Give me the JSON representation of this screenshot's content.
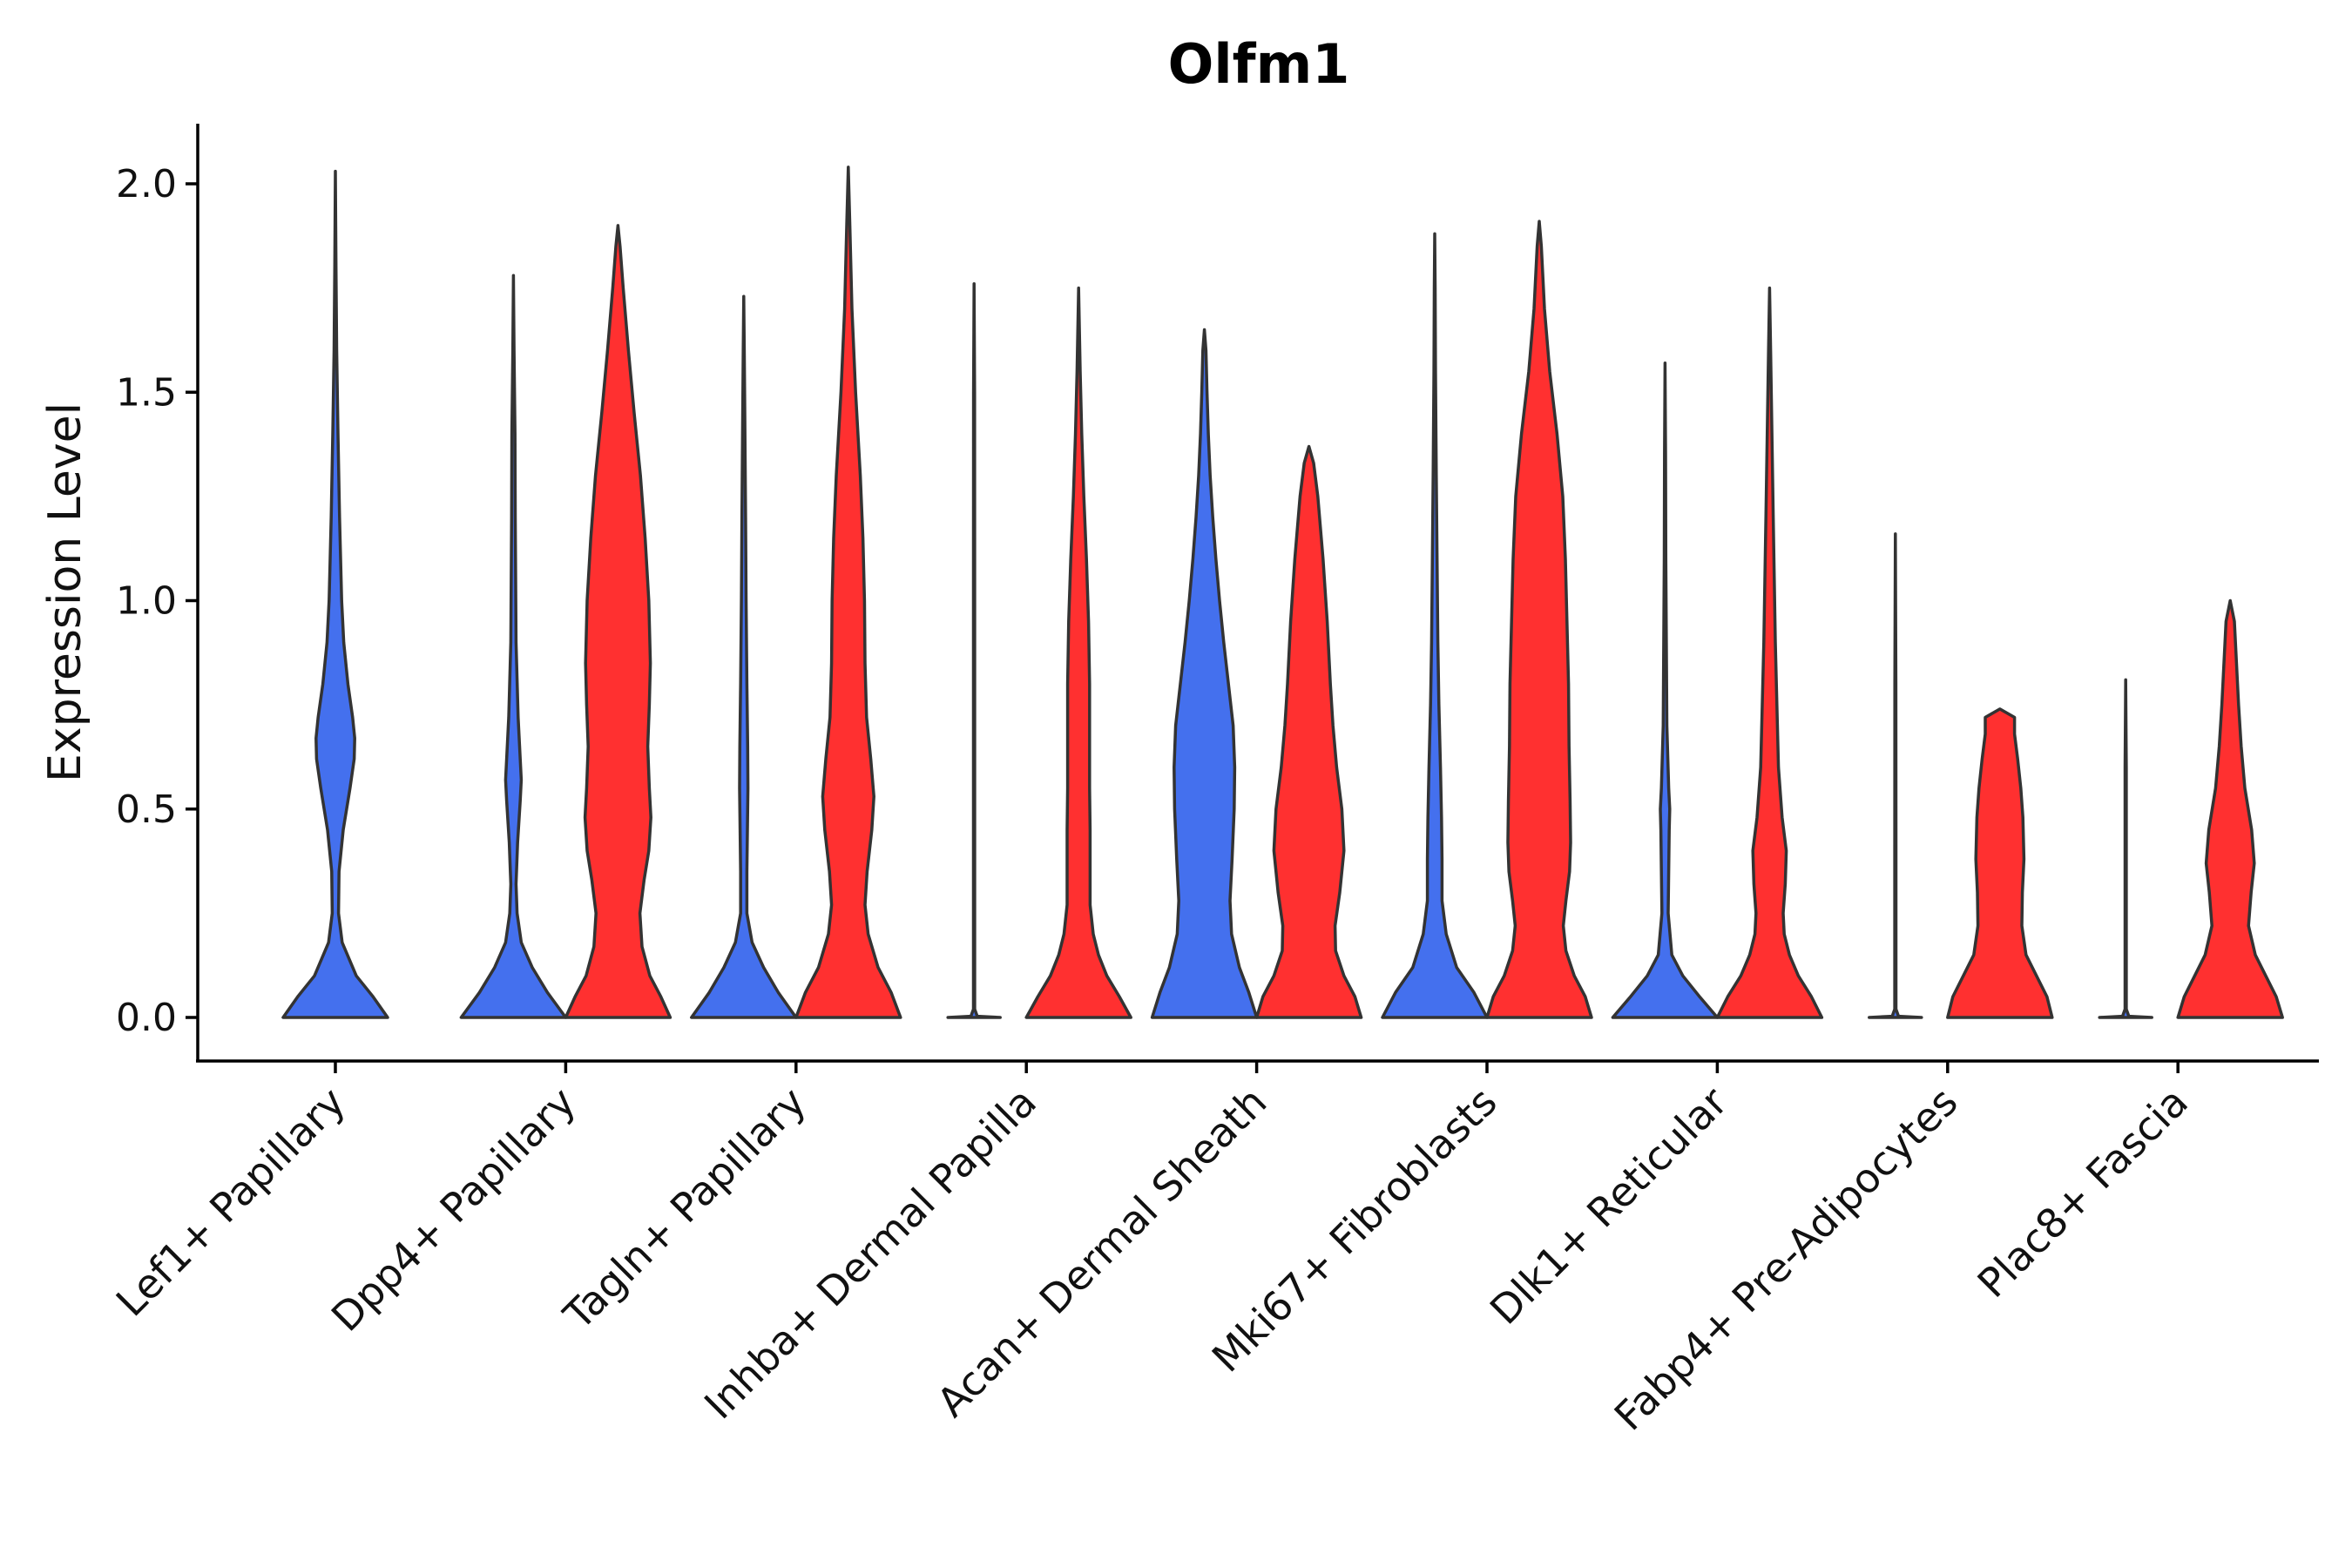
{
  "chart_data": {
    "type": "violin",
    "title": "Olfm1",
    "xlabel": "",
    "ylabel": "Expression Level",
    "ylim": [
      -0.1,
      2.15
    ],
    "yticks": [
      "0.0",
      "0.5",
      "1.0",
      "1.5",
      "2.0"
    ],
    "ytick_values": [
      0,
      0.5,
      1.0,
      1.5,
      2.0
    ],
    "colors": {
      "group1": "#4470EE",
      "group2": "#FF3030",
      "outline": "#333333"
    },
    "categories": [
      "Lef1+ Papillary",
      "Dpp4+ Papillary",
      "Tagln+ Papillary",
      "Inhba+ Dermal Papilla",
      "Acan+ Dermal Sheath",
      "Mki67+ Fibroblasts",
      "Dlk1+ Reticular",
      "Fabp4+ Pre-Adipocytes",
      "Plac8+ Fascia"
    ],
    "series": [
      {
        "name": "group1",
        "color": "#4470EE",
        "max_values": [
          2.03,
          1.78,
          1.73,
          1.76,
          1.65,
          1.88,
          1.57,
          1.16,
          0.81
        ],
        "density": [
          [
            [
              0,
              1.0
            ],
            [
              0.05,
              0.72
            ],
            [
              0.1,
              0.4
            ],
            [
              0.18,
              0.13
            ],
            [
              0.25,
              0.06
            ],
            [
              0.35,
              0.07
            ],
            [
              0.45,
              0.15
            ],
            [
              0.55,
              0.28
            ],
            [
              0.62,
              0.36
            ],
            [
              0.67,
              0.37
            ],
            [
              0.72,
              0.33
            ],
            [
              0.8,
              0.24
            ],
            [
              0.9,
              0.16
            ],
            [
              1.0,
              0.12
            ],
            [
              1.2,
              0.08
            ],
            [
              1.4,
              0.05
            ],
            [
              1.6,
              0.025
            ],
            [
              1.8,
              0.012
            ],
            [
              2.03,
              0.0
            ]
          ],
          [
            [
              0,
              1.0
            ],
            [
              0.06,
              0.65
            ],
            [
              0.12,
              0.36
            ],
            [
              0.18,
              0.15
            ],
            [
              0.25,
              0.07
            ],
            [
              0.32,
              0.05
            ],
            [
              0.42,
              0.08
            ],
            [
              0.52,
              0.13
            ],
            [
              0.57,
              0.15
            ],
            [
              0.62,
              0.13
            ],
            [
              0.72,
              0.09
            ],
            [
              0.9,
              0.05
            ],
            [
              1.2,
              0.035
            ],
            [
              1.4,
              0.03
            ],
            [
              1.6,
              0.012
            ],
            [
              1.78,
              0.0
            ]
          ],
          [
            [
              0,
              1.0
            ],
            [
              0.06,
              0.66
            ],
            [
              0.12,
              0.38
            ],
            [
              0.18,
              0.16
            ],
            [
              0.25,
              0.06
            ],
            [
              0.35,
              0.06
            ],
            [
              0.45,
              0.07
            ],
            [
              0.55,
              0.08
            ],
            [
              0.65,
              0.075
            ],
            [
              0.8,
              0.06
            ],
            [
              1.0,
              0.045
            ],
            [
              1.2,
              0.035
            ],
            [
              1.45,
              0.02
            ],
            [
              1.6,
              0.01
            ],
            [
              1.73,
              0.0
            ]
          ],
          [
            [
              0,
              0.5
            ],
            [
              0.003,
              0.06
            ],
            [
              0.02,
              0.012
            ],
            [
              0.5,
              0.012
            ],
            [
              1.0,
              0.012
            ],
            [
              1.5,
              0.01
            ],
            [
              1.76,
              0.0
            ]
          ],
          [
            [
              0,
              1.0
            ],
            [
              0.06,
              0.85
            ],
            [
              0.12,
              0.67
            ],
            [
              0.2,
              0.52
            ],
            [
              0.28,
              0.49
            ],
            [
              0.38,
              0.53
            ],
            [
              0.5,
              0.57
            ],
            [
              0.6,
              0.58
            ],
            [
              0.7,
              0.55
            ],
            [
              0.8,
              0.46
            ],
            [
              0.9,
              0.37
            ],
            [
              1.0,
              0.29
            ],
            [
              1.1,
              0.22
            ],
            [
              1.2,
              0.16
            ],
            [
              1.3,
              0.11
            ],
            [
              1.4,
              0.075
            ],
            [
              1.5,
              0.05
            ],
            [
              1.6,
              0.03
            ],
            [
              1.65,
              0.0
            ]
          ],
          [
            [
              0,
              1.0
            ],
            [
              0.06,
              0.75
            ],
            [
              0.12,
              0.42
            ],
            [
              0.2,
              0.22
            ],
            [
              0.28,
              0.14
            ],
            [
              0.38,
              0.14
            ],
            [
              0.48,
              0.13
            ],
            [
              0.6,
              0.11
            ],
            [
              0.75,
              0.08
            ],
            [
              0.9,
              0.06
            ],
            [
              1.1,
              0.045
            ],
            [
              1.3,
              0.03
            ],
            [
              1.55,
              0.015
            ],
            [
              1.75,
              0.008
            ],
            [
              1.88,
              0.0
            ]
          ],
          [
            [
              0,
              1.0
            ],
            [
              0.05,
              0.66
            ],
            [
              0.1,
              0.34
            ],
            [
              0.15,
              0.13
            ],
            [
              0.25,
              0.06
            ],
            [
              0.35,
              0.07
            ],
            [
              0.45,
              0.08
            ],
            [
              0.5,
              0.09
            ],
            [
              0.55,
              0.07
            ],
            [
              0.7,
              0.035
            ],
            [
              0.9,
              0.025
            ],
            [
              1.1,
              0.015
            ],
            [
              1.35,
              0.01
            ],
            [
              1.57,
              0.0
            ]
          ],
          [
            [
              0,
              0.5
            ],
            [
              0.003,
              0.06
            ],
            [
              0.02,
              0.012
            ],
            [
              0.4,
              0.012
            ],
            [
              0.8,
              0.01
            ],
            [
              1.16,
              0.0
            ]
          ],
          [
            [
              0,
              0.5
            ],
            [
              0.003,
              0.06
            ],
            [
              0.02,
              0.012
            ],
            [
              0.3,
              0.012
            ],
            [
              0.6,
              0.012
            ],
            [
              0.81,
              0.0
            ]
          ]
        ]
      },
      {
        "name": "group2",
        "color": "#FF3030",
        "max_values": [
          null,
          1.9,
          2.04,
          1.75,
          1.37,
          1.91,
          1.75,
          0.74,
          1.0
        ],
        "density": [
          null,
          [
            [
              0,
              1.0
            ],
            [
              0.05,
              0.82
            ],
            [
              0.1,
              0.61
            ],
            [
              0.17,
              0.46
            ],
            [
              0.25,
              0.42
            ],
            [
              0.33,
              0.5
            ],
            [
              0.4,
              0.59
            ],
            [
              0.48,
              0.63
            ],
            [
              0.55,
              0.6
            ],
            [
              0.65,
              0.57
            ],
            [
              0.75,
              0.6
            ],
            [
              0.85,
              0.62
            ],
            [
              1.0,
              0.59
            ],
            [
              1.15,
              0.52
            ],
            [
              1.3,
              0.43
            ],
            [
              1.45,
              0.31
            ],
            [
              1.6,
              0.2
            ],
            [
              1.75,
              0.1
            ],
            [
              1.85,
              0.04
            ],
            [
              1.9,
              0.0
            ]
          ],
          [
            [
              0,
              1.0
            ],
            [
              0.06,
              0.82
            ],
            [
              0.12,
              0.57
            ],
            [
              0.2,
              0.38
            ],
            [
              0.27,
              0.32
            ],
            [
              0.35,
              0.36
            ],
            [
              0.45,
              0.45
            ],
            [
              0.53,
              0.49
            ],
            [
              0.62,
              0.43
            ],
            [
              0.72,
              0.35
            ],
            [
              0.85,
              0.32
            ],
            [
              1.0,
              0.31
            ],
            [
              1.15,
              0.28
            ],
            [
              1.3,
              0.23
            ],
            [
              1.5,
              0.14
            ],
            [
              1.7,
              0.07
            ],
            [
              1.9,
              0.03
            ],
            [
              2.04,
              0.0
            ]
          ],
          [
            [
              0,
              1.0
            ],
            [
              0.05,
              0.78
            ],
            [
              0.1,
              0.54
            ],
            [
              0.15,
              0.38
            ],
            [
              0.2,
              0.28
            ],
            [
              0.27,
              0.22
            ],
            [
              0.35,
              0.22
            ],
            [
              0.45,
              0.22
            ],
            [
              0.55,
              0.21
            ],
            [
              0.65,
              0.21
            ],
            [
              0.8,
              0.21
            ],
            [
              0.95,
              0.19
            ],
            [
              1.1,
              0.15
            ],
            [
              1.25,
              0.1
            ],
            [
              1.4,
              0.06
            ],
            [
              1.55,
              0.03
            ],
            [
              1.75,
              0.0
            ]
          ],
          [
            [
              0,
              1.0
            ],
            [
              0.05,
              0.88
            ],
            [
              0.1,
              0.67
            ],
            [
              0.16,
              0.51
            ],
            [
              0.22,
              0.5
            ],
            [
              0.3,
              0.59
            ],
            [
              0.4,
              0.67
            ],
            [
              0.5,
              0.63
            ],
            [
              0.6,
              0.53
            ],
            [
              0.7,
              0.46
            ],
            [
              0.8,
              0.41
            ],
            [
              0.95,
              0.35
            ],
            [
              1.1,
              0.27
            ],
            [
              1.25,
              0.17
            ],
            [
              1.33,
              0.09
            ],
            [
              1.37,
              0.0
            ]
          ],
          [
            [
              0,
              1.0
            ],
            [
              0.05,
              0.88
            ],
            [
              0.1,
              0.67
            ],
            [
              0.16,
              0.51
            ],
            [
              0.22,
              0.46
            ],
            [
              0.28,
              0.51
            ],
            [
              0.35,
              0.58
            ],
            [
              0.42,
              0.6
            ],
            [
              0.52,
              0.59
            ],
            [
              0.65,
              0.57
            ],
            [
              0.8,
              0.56
            ],
            [
              0.95,
              0.53
            ],
            [
              1.1,
              0.5
            ],
            [
              1.25,
              0.45
            ],
            [
              1.4,
              0.34
            ],
            [
              1.55,
              0.2
            ],
            [
              1.7,
              0.1
            ],
            [
              1.85,
              0.04
            ],
            [
              1.91,
              0.0
            ]
          ],
          [
            [
              0,
              1.0
            ],
            [
              0.05,
              0.8
            ],
            [
              0.1,
              0.55
            ],
            [
              0.15,
              0.38
            ],
            [
              0.2,
              0.28
            ],
            [
              0.25,
              0.26
            ],
            [
              0.32,
              0.3
            ],
            [
              0.4,
              0.32
            ],
            [
              0.48,
              0.24
            ],
            [
              0.6,
              0.17
            ],
            [
              0.75,
              0.14
            ],
            [
              0.9,
              0.11
            ],
            [
              1.05,
              0.09
            ],
            [
              1.2,
              0.07
            ],
            [
              1.4,
              0.045
            ],
            [
              1.6,
              0.02
            ],
            [
              1.75,
              0.0
            ]
          ],
          [
            [
              0,
              1.0
            ],
            [
              0.05,
              0.9
            ],
            [
              0.1,
              0.7
            ],
            [
              0.15,
              0.5
            ],
            [
              0.22,
              0.42
            ],
            [
              0.3,
              0.43
            ],
            [
              0.38,
              0.46
            ],
            [
              0.48,
              0.44
            ],
            [
              0.55,
              0.4
            ],
            [
              0.62,
              0.34
            ],
            [
              0.68,
              0.28
            ],
            [
              0.72,
              0.28
            ],
            [
              0.74,
              0.0
            ]
          ],
          [
            [
              0,
              1.0
            ],
            [
              0.05,
              0.88
            ],
            [
              0.1,
              0.68
            ],
            [
              0.15,
              0.48
            ],
            [
              0.22,
              0.35
            ],
            [
              0.3,
              0.4
            ],
            [
              0.37,
              0.46
            ],
            [
              0.45,
              0.41
            ],
            [
              0.55,
              0.28
            ],
            [
              0.65,
              0.21
            ],
            [
              0.75,
              0.16
            ],
            [
              0.85,
              0.12
            ],
            [
              0.95,
              0.08
            ],
            [
              1.0,
              0.0
            ]
          ]
        ]
      }
    ]
  }
}
